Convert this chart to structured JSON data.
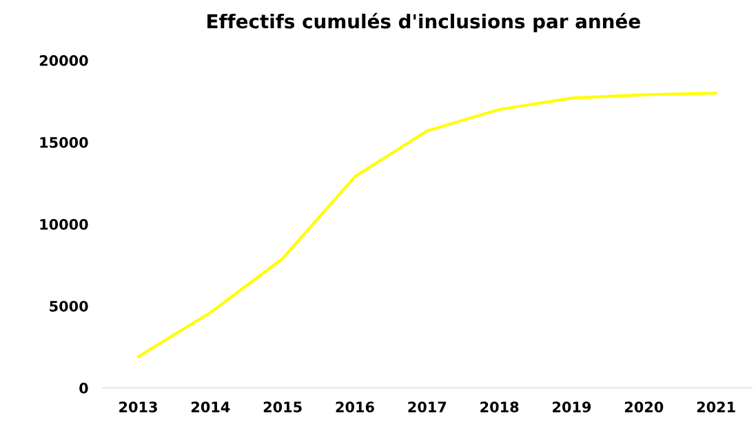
{
  "chart_data": {
    "type": "line",
    "title": "Effectifs cumulés d'inclusions par année",
    "categories": [
      "2013",
      "2014",
      "2015",
      "2016",
      "2017",
      "2018",
      "2019",
      "2020",
      "2021"
    ],
    "series": [
      {
        "color": "#ffff00",
        "values": [
          1900,
          4600,
          7900,
          12900,
          15700,
          17000,
          17700,
          17900,
          18000
        ]
      }
    ],
    "ylim": [
      0,
      20000
    ],
    "yticks": [
      0,
      5000,
      10000,
      15000,
      20000
    ],
    "grid": false,
    "marker": "none",
    "line_style": "solid"
  }
}
